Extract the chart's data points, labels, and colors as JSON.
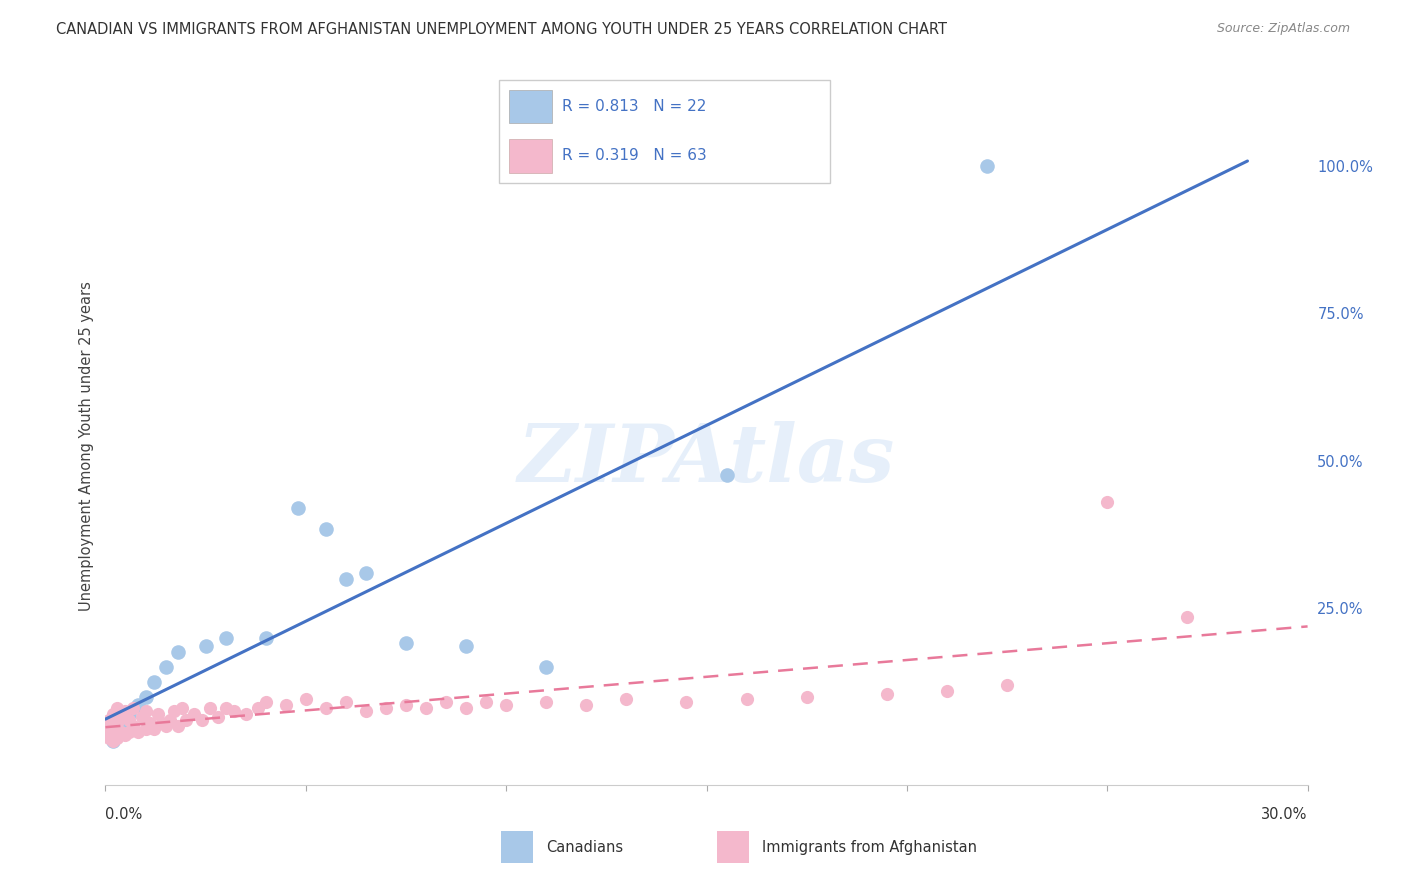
{
  "title": "CANADIAN VS IMMIGRANTS FROM AFGHANISTAN UNEMPLOYMENT AMONG YOUTH UNDER 25 YEARS CORRELATION CHART",
  "source": "Source: ZipAtlas.com",
  "ylabel": "Unemployment Among Youth under 25 years",
  "xlim": [
    0.0,
    0.3
  ],
  "ylim": [
    -0.05,
    1.1
  ],
  "right_yticks": [
    0.0,
    0.25,
    0.5,
    0.75,
    1.0
  ],
  "right_yticklabels": [
    "",
    "25.0%",
    "50.0%",
    "75.0%",
    "100.0%"
  ],
  "watermark": "ZIPAtlas",
  "blue_scatter_color": "#a8c8e8",
  "pink_scatter_color": "#f4b8cc",
  "blue_line_color": "#4472c4",
  "pink_line_color": "#e8799a",
  "legend_text_color": "#4472c4",
  "background_color": "#ffffff",
  "grid_color": "#d8d8d8",
  "canadians_x": [
    0.002,
    0.003,
    0.004,
    0.005,
    0.006,
    0.008,
    0.01,
    0.012,
    0.015,
    0.018,
    0.025,
    0.03,
    0.04,
    0.048,
    0.055,
    0.06,
    0.065,
    0.075,
    0.09,
    0.11,
    0.155,
    0.22
  ],
  "canadians_y": [
    0.025,
    0.035,
    0.045,
    0.055,
    0.07,
    0.085,
    0.1,
    0.125,
    0.15,
    0.175,
    0.185,
    0.2,
    0.2,
    0.42,
    0.385,
    0.3,
    0.31,
    0.19,
    0.185,
    0.15,
    0.475,
    1.0
  ],
  "afghan_x": [
    0.001,
    0.001,
    0.001,
    0.002,
    0.002,
    0.002,
    0.003,
    0.003,
    0.003,
    0.004,
    0.004,
    0.005,
    0.005,
    0.006,
    0.006,
    0.007,
    0.007,
    0.008,
    0.009,
    0.01,
    0.01,
    0.011,
    0.012,
    0.013,
    0.014,
    0.015,
    0.016,
    0.017,
    0.018,
    0.019,
    0.02,
    0.022,
    0.024,
    0.026,
    0.028,
    0.03,
    0.032,
    0.035,
    0.038,
    0.04,
    0.045,
    0.05,
    0.055,
    0.06,
    0.065,
    0.07,
    0.075,
    0.08,
    0.085,
    0.09,
    0.095,
    0.1,
    0.11,
    0.12,
    0.13,
    0.145,
    0.16,
    0.175,
    0.195,
    0.21,
    0.225,
    0.25,
    0.27
  ],
  "afghan_y": [
    0.03,
    0.045,
    0.06,
    0.025,
    0.05,
    0.07,
    0.03,
    0.055,
    0.08,
    0.04,
    0.065,
    0.035,
    0.075,
    0.04,
    0.06,
    0.05,
    0.08,
    0.04,
    0.065,
    0.045,
    0.075,
    0.055,
    0.045,
    0.07,
    0.055,
    0.05,
    0.06,
    0.075,
    0.05,
    0.08,
    0.06,
    0.07,
    0.06,
    0.08,
    0.065,
    0.08,
    0.075,
    0.07,
    0.08,
    0.09,
    0.085,
    0.095,
    0.08,
    0.09,
    0.075,
    0.08,
    0.085,
    0.08,
    0.09,
    0.08,
    0.09,
    0.085,
    0.09,
    0.085,
    0.095,
    0.09,
    0.095,
    0.1,
    0.105,
    0.11,
    0.12,
    0.43,
    0.235
  ]
}
